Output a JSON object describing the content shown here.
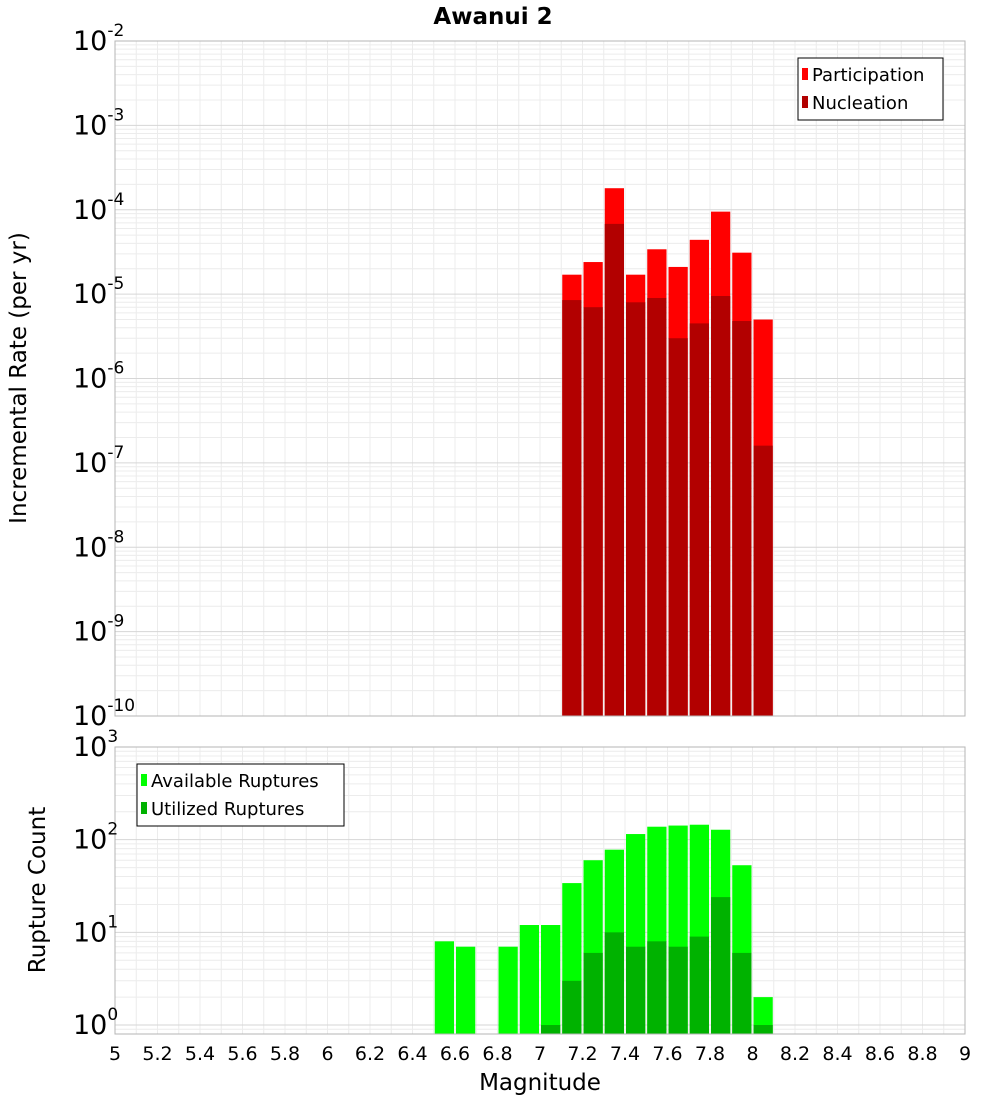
{
  "chart_data": [
    {
      "type": "bar",
      "title": "Awanui 2",
      "xlabel": "",
      "ylabel": "Incremental Rate (per yr)",
      "yscale": "log",
      "ylim": [
        1e-10,
        0.01
      ],
      "xlim": [
        5,
        9
      ],
      "bar_width": 0.1,
      "legend_position": "top-right",
      "y_ticks": [
        {
          "base": "10",
          "exp": "-2",
          "value": 0.01
        },
        {
          "base": "10",
          "exp": "-3",
          "value": 0.001
        },
        {
          "base": "10",
          "exp": "-4",
          "value": 0.0001
        },
        {
          "base": "10",
          "exp": "-5",
          "value": 1e-05
        },
        {
          "base": "10",
          "exp": "-6",
          "value": 1e-06
        },
        {
          "base": "10",
          "exp": "-7",
          "value": 1e-07
        },
        {
          "base": "10",
          "exp": "-8",
          "value": 1e-08
        },
        {
          "base": "10",
          "exp": "-9",
          "value": 1e-09
        },
        {
          "base": "10",
          "exp": "-10",
          "value": 1e-10
        }
      ],
      "x": [
        7.15,
        7.25,
        7.35,
        7.45,
        7.55,
        7.65,
        7.75,
        7.85,
        7.95,
        8.05
      ],
      "series": [
        {
          "name": "Participation",
          "color": "#ff0000",
          "values": [
            1.7e-05,
            2.4e-05,
            0.00018,
            1.7e-05,
            3.4e-05,
            2.1e-05,
            4.4e-05,
            9.5e-05,
            3.1e-05,
            5e-06
          ]
        },
        {
          "name": "Nucleation",
          "color": "#b20000",
          "values": [
            8.5e-06,
            7e-06,
            6.8e-05,
            8e-06,
            9e-06,
            3e-06,
            4.5e-06,
            9.5e-06,
            4.8e-06,
            1.6e-07
          ]
        }
      ]
    },
    {
      "type": "bar",
      "title": "",
      "xlabel": "Magnitude",
      "ylabel": "Rupture Count",
      "yscale": "log",
      "ylim": [
        0.8,
        1000
      ],
      "xlim": [
        5,
        9
      ],
      "bar_width": 0.1,
      "legend_position": "top-left",
      "y_ticks": [
        {
          "base": "10",
          "exp": "3",
          "value": 1000
        },
        {
          "base": "10",
          "exp": "2",
          "value": 100
        },
        {
          "base": "10",
          "exp": "1",
          "value": 10
        },
        {
          "base": "10",
          "exp": "0",
          "value": 1
        }
      ],
      "x_ticks": [
        "5",
        "5.2",
        "5.4",
        "5.6",
        "5.8",
        "6",
        "6.2",
        "6.4",
        "6.6",
        "6.8",
        "7",
        "7.2",
        "7.4",
        "7.6",
        "7.8",
        "8",
        "8.2",
        "8.4",
        "8.6",
        "8.8",
        "9"
      ],
      "x": [
        6.55,
        6.65,
        6.85,
        6.95,
        7.05,
        7.15,
        7.25,
        7.35,
        7.45,
        7.55,
        7.65,
        7.75,
        7.85,
        7.95,
        8.05
      ],
      "series": [
        {
          "name": "Available Ruptures",
          "color": "#00ff00",
          "values": [
            8,
            7,
            7,
            12,
            12,
            34,
            60,
            78,
            115,
            138,
            142,
            145,
            128,
            53,
            2
          ]
        },
        {
          "name": "Utilized Ruptures",
          "color": "#00b200",
          "values": [
            0,
            0,
            0,
            0,
            1,
            3,
            6,
            10,
            7,
            8,
            7,
            9,
            24,
            6,
            1
          ]
        }
      ]
    }
  ]
}
